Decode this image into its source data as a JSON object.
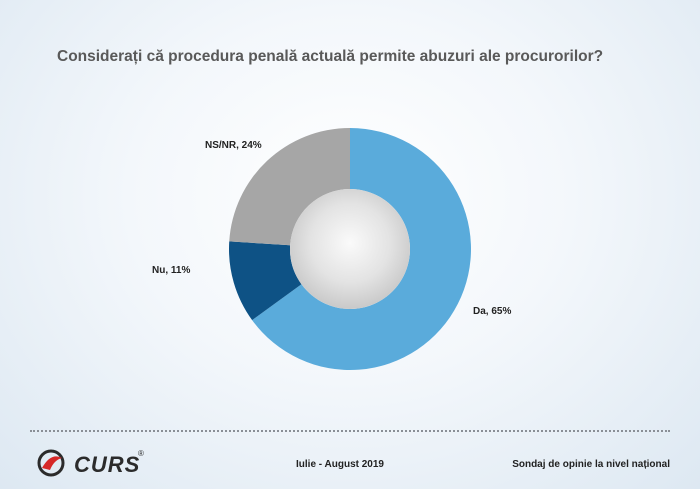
{
  "chart_data": {
    "type": "pie",
    "title": "Considerați că procedura penală actuală permite abuzuri ale procurorilor?",
    "slices": [
      {
        "label": "Da",
        "value": 65,
        "label_text": "Da, 65%",
        "color": "#5aabdb"
      },
      {
        "label": "Nu",
        "value": 11,
        "label_text": "Nu, 11%",
        "color": "#0e5285"
      },
      {
        "label": "NS/NR",
        "value": 24,
        "label_text": "NS/NR, 24%",
        "color": "#a6a6a6"
      }
    ],
    "donut": true
  },
  "footer": {
    "logo_text": "CURS",
    "logo_mark": "®",
    "period": "Iulie - August 2019",
    "survey": "Sondaj de opinie la nivel național"
  }
}
